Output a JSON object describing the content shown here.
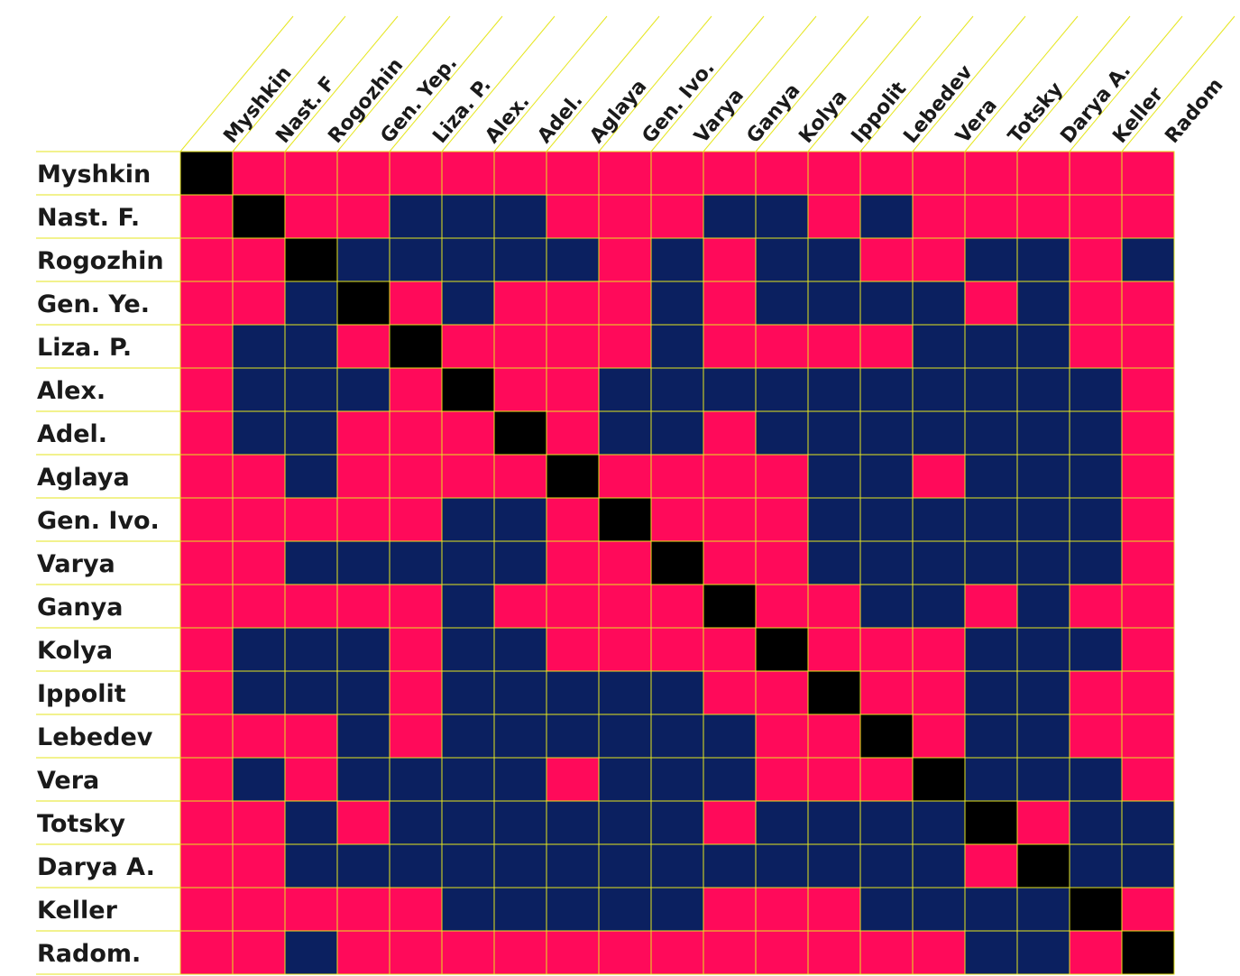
{
  "chart_data": {
    "type": "heatmap",
    "rows": [
      "Myshkin",
      "Nast. F.",
      "Rogozhin",
      "Gen. Ye.",
      "Liza. P.",
      "Alex.",
      "Adel.",
      "Aglaya",
      "Gen. Ivo.",
      "Varya",
      "Ganya",
      "Kolya",
      "Ippolit",
      "Lebedev",
      "Vera",
      "Totsky",
      "Darya A.",
      "Keller",
      "Radom."
    ],
    "columns": [
      "Myshkin",
      "Nast. F",
      "Rogozhin",
      "Gen. Yep.",
      "Liza. P.",
      "Alex.",
      "Adel.",
      "Aglaya",
      "Gen. Ivo.",
      "Varya",
      "Ganya",
      "Kolya",
      "Ippolit",
      "Lebedev",
      "Vera",
      "Totsky",
      "Darya A.",
      "Keller",
      "Radom"
    ],
    "values": [
      [
        2,
        0,
        0,
        0,
        0,
        0,
        0,
        0,
        0,
        0,
        0,
        0,
        0,
        0,
        0,
        0,
        0,
        0,
        0
      ],
      [
        0,
        2,
        0,
        0,
        1,
        1,
        1,
        0,
        0,
        0,
        1,
        1,
        0,
        1,
        0,
        0,
        0,
        0,
        0
      ],
      [
        0,
        0,
        2,
        1,
        1,
        1,
        1,
        1,
        0,
        1,
        0,
        1,
        1,
        0,
        0,
        1,
        1,
        0,
        1
      ],
      [
        0,
        0,
        1,
        2,
        0,
        1,
        0,
        0,
        0,
        1,
        0,
        1,
        1,
        1,
        1,
        0,
        1,
        0,
        0
      ],
      [
        0,
        1,
        1,
        0,
        2,
        0,
        0,
        0,
        0,
        1,
        0,
        0,
        0,
        0,
        1,
        1,
        1,
        0,
        0
      ],
      [
        0,
        1,
        1,
        1,
        0,
        2,
        0,
        0,
        1,
        1,
        1,
        1,
        1,
        1,
        1,
        1,
        1,
        1,
        0
      ],
      [
        0,
        1,
        1,
        0,
        0,
        0,
        2,
        0,
        1,
        1,
        0,
        1,
        1,
        1,
        1,
        1,
        1,
        1,
        0
      ],
      [
        0,
        0,
        1,
        0,
        0,
        0,
        0,
        2,
        0,
        0,
        0,
        0,
        1,
        1,
        0,
        1,
        1,
        1,
        0
      ],
      [
        0,
        0,
        0,
        0,
        0,
        1,
        1,
        0,
        2,
        0,
        0,
        0,
        1,
        1,
        1,
        1,
        1,
        1,
        0
      ],
      [
        0,
        0,
        1,
        1,
        1,
        1,
        1,
        0,
        0,
        2,
        0,
        0,
        1,
        1,
        1,
        1,
        1,
        1,
        0
      ],
      [
        0,
        0,
        0,
        0,
        0,
        1,
        0,
        0,
        0,
        0,
        2,
        0,
        0,
        1,
        1,
        0,
        1,
        0,
        0
      ],
      [
        0,
        1,
        1,
        1,
        0,
        1,
        1,
        0,
        0,
        0,
        0,
        2,
        0,
        0,
        0,
        1,
        1,
        1,
        0
      ],
      [
        0,
        1,
        1,
        1,
        0,
        1,
        1,
        1,
        1,
        1,
        0,
        0,
        2,
        0,
        0,
        1,
        1,
        0,
        0
      ],
      [
        0,
        0,
        0,
        1,
        0,
        1,
        1,
        1,
        1,
        1,
        1,
        0,
        0,
        2,
        0,
        1,
        1,
        0,
        0
      ],
      [
        0,
        1,
        0,
        1,
        1,
        1,
        1,
        0,
        1,
        1,
        1,
        0,
        0,
        0,
        2,
        1,
        1,
        1,
        0
      ],
      [
        0,
        0,
        1,
        0,
        1,
        1,
        1,
        1,
        1,
        1,
        0,
        1,
        1,
        1,
        1,
        2,
        0,
        1,
        1
      ],
      [
        0,
        0,
        1,
        1,
        1,
        1,
        1,
        1,
        1,
        1,
        1,
        1,
        1,
        1,
        1,
        0,
        2,
        1,
        1
      ],
      [
        0,
        0,
        0,
        0,
        0,
        1,
        1,
        1,
        1,
        1,
        0,
        0,
        0,
        1,
        1,
        1,
        1,
        2,
        0
      ],
      [
        0,
        0,
        1,
        0,
        0,
        0,
        0,
        0,
        0,
        0,
        0,
        0,
        0,
        0,
        0,
        1,
        1,
        0,
        2
      ]
    ],
    "colors": {
      "0": "#ff0a5a",
      "1": "#0b2060",
      "2": "#000000",
      "grid": "#e6e61e",
      "label": "#1a1a1a"
    }
  }
}
